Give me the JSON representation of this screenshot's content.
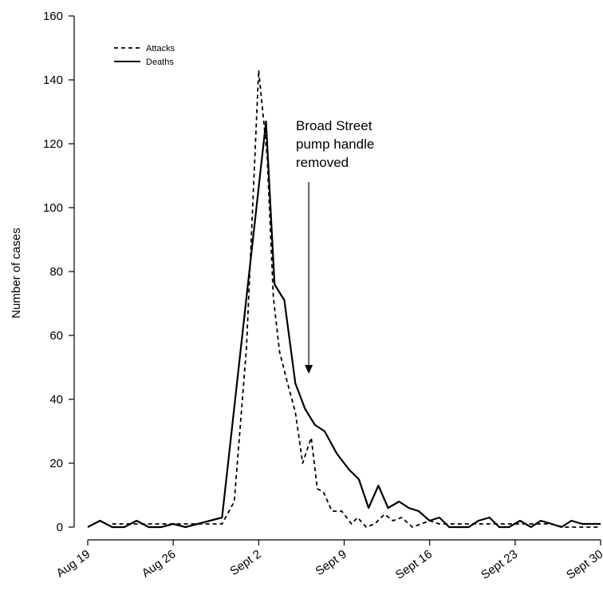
{
  "chart_data": {
    "type": "line",
    "title": "",
    "xlabel": "",
    "ylabel": "Number of cases",
    "ylim": [
      0,
      160
    ],
    "yticks": [
      0,
      20,
      40,
      60,
      80,
      100,
      120,
      140,
      160
    ],
    "x_unit": "day",
    "xlim": [
      0,
      42
    ],
    "xticks": [
      {
        "x": 0,
        "label": "Aug 19"
      },
      {
        "x": 7,
        "label": "Aug 26"
      },
      {
        "x": 14,
        "label": "Sept 2"
      },
      {
        "x": 21,
        "label": "Sept 9"
      },
      {
        "x": 28,
        "label": "Sept 16"
      },
      {
        "x": 35,
        "label": "Sept 23"
      },
      {
        "x": 42,
        "label": "Sept 30"
      }
    ],
    "grid": false,
    "legend_position": "top-left",
    "series": [
      {
        "name": "Attacks",
        "style": "dashed",
        "color": "#000000",
        "points": [
          [
            2,
            1
          ],
          [
            3,
            1
          ],
          [
            4,
            1
          ],
          [
            5,
            1
          ],
          [
            6,
            1
          ],
          [
            7,
            1
          ],
          [
            8,
            1
          ],
          [
            9,
            1
          ],
          [
            10,
            1
          ],
          [
            11,
            1
          ],
          [
            12,
            8
          ],
          [
            13,
            56
          ],
          [
            14,
            143
          ],
          [
            14.7,
            116
          ],
          [
            15.2,
            72
          ],
          [
            15.7,
            55
          ],
          [
            16.3,
            46
          ],
          [
            17,
            36
          ],
          [
            17.6,
            20
          ],
          [
            18.3,
            28
          ],
          [
            18.8,
            12
          ],
          [
            19.3,
            11
          ],
          [
            20,
            5
          ],
          [
            20.8,
            5
          ],
          [
            21.6,
            1
          ],
          [
            22.1,
            3
          ],
          [
            22.8,
            0
          ],
          [
            23.5,
            1
          ],
          [
            24.3,
            4
          ],
          [
            25,
            2
          ],
          [
            25.7,
            3
          ],
          [
            26.6,
            0
          ],
          [
            27.3,
            1
          ],
          [
            28,
            2
          ],
          [
            28.8,
            1
          ],
          [
            29.6,
            1
          ],
          [
            30.5,
            1
          ],
          [
            31.4,
            1
          ],
          [
            32.5,
            1
          ],
          [
            33.5,
            1
          ],
          [
            34.5,
            1
          ],
          [
            35.5,
            1
          ],
          [
            36.7,
            1
          ],
          [
            37.9,
            1
          ],
          [
            39,
            0
          ],
          [
            40.2,
            0
          ],
          [
            42,
            0
          ]
        ]
      },
      {
        "name": "Deaths",
        "style": "solid",
        "color": "#000000",
        "points": [
          [
            0,
            0
          ],
          [
            1,
            2
          ],
          [
            2,
            0
          ],
          [
            3,
            0
          ],
          [
            4,
            2
          ],
          [
            5,
            0
          ],
          [
            6,
            0
          ],
          [
            7,
            1
          ],
          [
            8,
            0
          ],
          [
            9,
            1
          ],
          [
            10,
            2
          ],
          [
            11,
            3
          ],
          [
            14.6,
            127
          ],
          [
            15.3,
            76
          ],
          [
            16.1,
            71
          ],
          [
            17,
            45
          ],
          [
            17.8,
            37
          ],
          [
            18.6,
            32
          ],
          [
            19.4,
            30
          ],
          [
            20.4,
            23
          ],
          [
            21.4,
            18
          ],
          [
            22.2,
            15
          ],
          [
            23,
            6
          ],
          [
            23.8,
            13
          ],
          [
            24.6,
            6
          ],
          [
            25.5,
            8
          ],
          [
            26.3,
            6
          ],
          [
            27.1,
            5
          ],
          [
            28,
            2
          ],
          [
            28.8,
            3
          ],
          [
            29.6,
            0
          ],
          [
            30.4,
            0
          ],
          [
            31.2,
            0
          ],
          [
            32,
            2
          ],
          [
            32.9,
            3
          ],
          [
            33.7,
            0
          ],
          [
            34.5,
            0
          ],
          [
            35.4,
            2
          ],
          [
            36.3,
            0
          ],
          [
            37.1,
            2
          ],
          [
            38,
            1
          ],
          [
            38.8,
            0
          ],
          [
            39.6,
            2
          ],
          [
            40.5,
            1
          ],
          [
            42,
            1
          ]
        ]
      }
    ],
    "annotations": [
      {
        "text_lines": [
          "Broad Street",
          "pump handle",
          "removed"
        ],
        "arrow_x": 18.1,
        "arrow_from_y": 108,
        "arrow_to_y": 48
      }
    ]
  }
}
